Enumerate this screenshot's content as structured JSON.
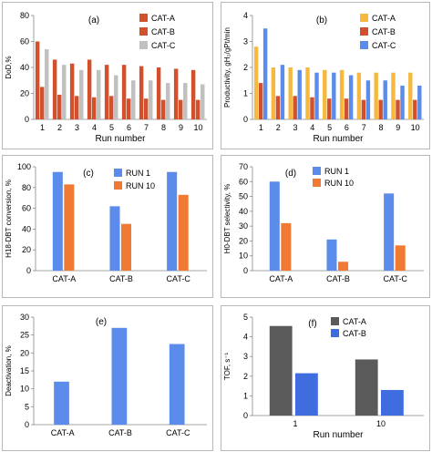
{
  "colors": {
    "cat_a": "#D2512C",
    "cat_b": "#C0C0C0",
    "cat_c": "#F6B93D",
    "blue": "#5B8CEB",
    "orange": "#F07A33",
    "gray": "#5A5A5A",
    "blue_b": "#3F6DE0"
  },
  "chart_data": [
    {
      "id": "a",
      "type": "bar",
      "panel_label": "(a)",
      "xlabel": "Run number",
      "ylabel": "DoD,%",
      "ylim": [
        0,
        80
      ],
      "yticks": [
        0,
        20,
        40,
        60,
        80
      ],
      "categories": [
        "1",
        "2",
        "3",
        "4",
        "5",
        "6",
        "7",
        "8",
        "9",
        "10"
      ],
      "legend_position": "top-right",
      "series": [
        {
          "name": "CAT-A",
          "color_key": "cat_a",
          "values": [
            60,
            46,
            43,
            46,
            42,
            42,
            41,
            40,
            39,
            38
          ]
        },
        {
          "name": "CAT-B",
          "color_key": "cat_a",
          "values": [
            25,
            19,
            18,
            17,
            18,
            16,
            16,
            15,
            15,
            15
          ]
        },
        {
          "name": "CAT-C",
          "color_key": "cat_b",
          "values": [
            54,
            42,
            38,
            38,
            34,
            30,
            30,
            28,
            28,
            27
          ]
        }
      ],
      "legend": [
        {
          "name": "CAT-A",
          "color_key": "cat_a"
        },
        {
          "name": "CAT-B",
          "color_key": "cat_a"
        },
        {
          "name": "CAT-C",
          "color_key": "cat_b"
        }
      ]
    },
    {
      "id": "b",
      "type": "bar",
      "panel_label": "(b)",
      "xlabel": "Run number",
      "ylabel": "Productivity, gH₂/gPt/min",
      "ylim": [
        0,
        4
      ],
      "yticks": [
        0,
        1,
        2,
        3,
        4
      ],
      "categories": [
        "1",
        "2",
        "3",
        "4",
        "5",
        "6",
        "7",
        "8",
        "9",
        "10"
      ],
      "legend_position": "top-right",
      "series": [
        {
          "name": "CAT-A",
          "color_key": "cat_c",
          "values": [
            2.8,
            2.0,
            2.0,
            2.0,
            1.9,
            1.9,
            1.8,
            1.8,
            1.8,
            1.8
          ]
        },
        {
          "name": "CAT-B",
          "color_key": "cat_a",
          "values": [
            1.4,
            0.9,
            0.9,
            0.85,
            0.8,
            0.8,
            0.75,
            0.75,
            0.75,
            0.75
          ]
        },
        {
          "name": "CAT-C",
          "color_key": "blue",
          "values": [
            3.5,
            2.1,
            1.9,
            1.8,
            1.8,
            1.7,
            1.5,
            1.5,
            1.3,
            1.3
          ]
        }
      ],
      "legend": [
        {
          "name": "CAT-A",
          "color_key": "cat_c"
        },
        {
          "name": "CAT-B",
          "color_key": "cat_a"
        },
        {
          "name": "CAT-C",
          "color_key": "blue"
        }
      ]
    },
    {
      "id": "c",
      "type": "bar",
      "panel_label": "(c)",
      "xlabel": "",
      "ylabel": "H18-DBT conversion, %",
      "ylim": [
        0,
        100
      ],
      "yticks": [
        0,
        20,
        40,
        60,
        80,
        100
      ],
      "categories": [
        "CAT-A",
        "CAT-B",
        "CAT-C"
      ],
      "legend_position": "top-center",
      "series": [
        {
          "name": "RUN 1",
          "color_key": "blue",
          "values": [
            95,
            62,
            95
          ]
        },
        {
          "name": "RUN 10",
          "color_key": "orange",
          "values": [
            83,
            45,
            73
          ]
        }
      ],
      "legend": [
        {
          "name": "RUN 1",
          "color_key": "blue"
        },
        {
          "name": "RUN 10",
          "color_key": "orange"
        }
      ]
    },
    {
      "id": "d",
      "type": "bar",
      "panel_label": "(d)",
      "xlabel": "",
      "ylabel": "H0-DBT selectivity, %",
      "ylim": [
        0,
        70
      ],
      "yticks": [
        0,
        10,
        20,
        30,
        40,
        50,
        60,
        70
      ],
      "categories": [
        "CAT-A",
        "CAT-B",
        "CAT-C"
      ],
      "legend_position": "top-right",
      "series": [
        {
          "name": "RUN 1",
          "color_key": "blue",
          "values": [
            60,
            21,
            52
          ]
        },
        {
          "name": "RUN 10",
          "color_key": "orange",
          "values": [
            32,
            6,
            17
          ]
        }
      ],
      "legend": [
        {
          "name": "RUN 1",
          "color_key": "blue"
        },
        {
          "name": "RUN 10",
          "color_key": "orange"
        }
      ]
    },
    {
      "id": "e",
      "type": "bar",
      "panel_label": "(e)",
      "xlabel": "",
      "ylabel": "Deactivation, %",
      "ylim": [
        0,
        30
      ],
      "yticks": [
        0,
        5,
        10,
        15,
        20,
        25,
        30
      ],
      "categories": [
        "CAT-A",
        "CAT-B",
        "CAT-C"
      ],
      "series": [
        {
          "name": "",
          "color_key": "blue",
          "values": [
            12,
            27,
            22.5
          ]
        }
      ],
      "legend": []
    },
    {
      "id": "f",
      "type": "bar",
      "panel_label": "(f)",
      "xlabel": "Run number",
      "ylabel": "TOF, s⁻¹",
      "ylim": [
        0,
        5
      ],
      "yticks": [
        0,
        1,
        2,
        3,
        4,
        5
      ],
      "categories": [
        "1",
        "10"
      ],
      "legend_position": "top-right",
      "series": [
        {
          "name": "CAT-A",
          "color_key": "gray",
          "values": [
            4.55,
            2.85
          ]
        },
        {
          "name": "CAT-B",
          "color_key": "blue_b",
          "values": [
            2.15,
            1.3
          ]
        }
      ],
      "legend": [
        {
          "name": "CAT-A",
          "color_key": "gray"
        },
        {
          "name": "CAT-B",
          "color_key": "blue_b"
        }
      ]
    }
  ]
}
